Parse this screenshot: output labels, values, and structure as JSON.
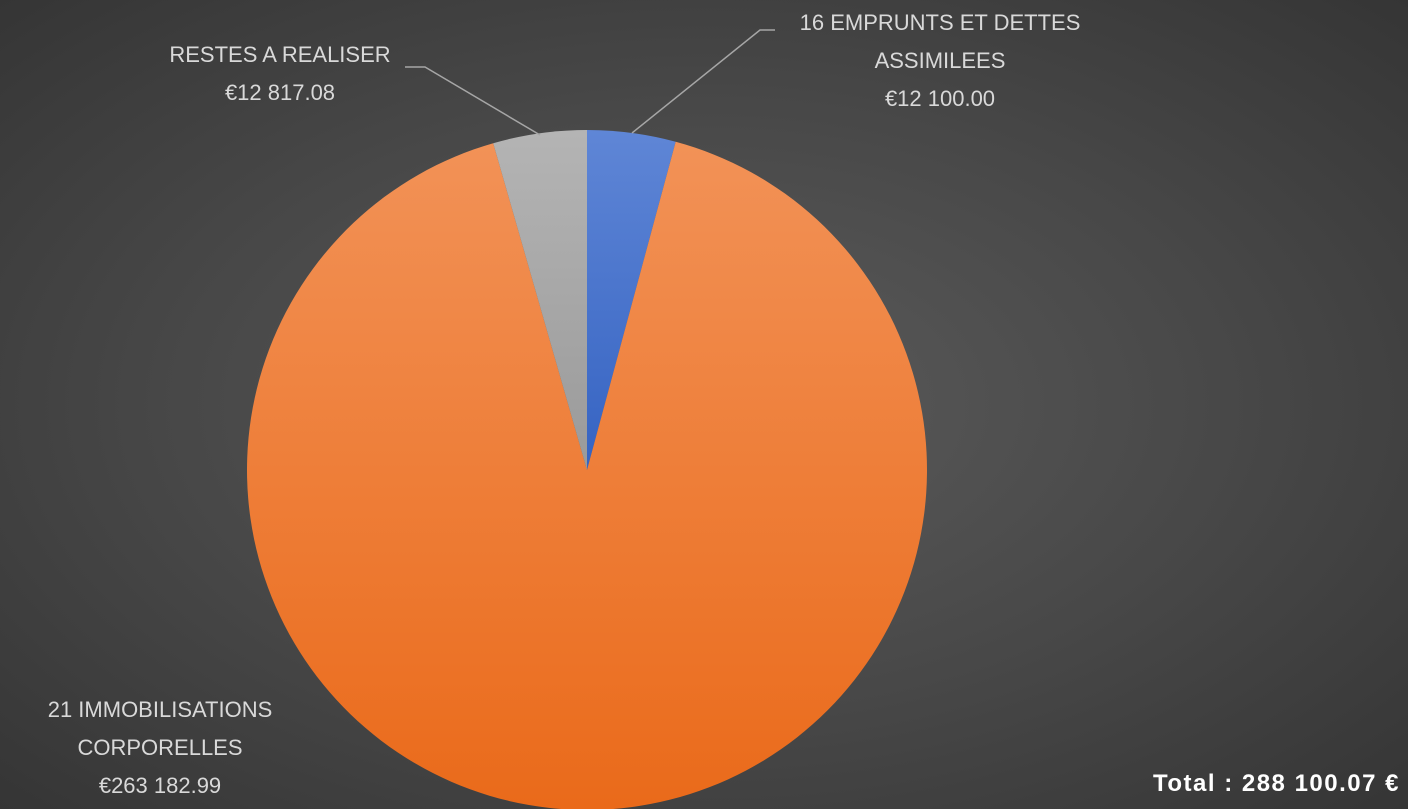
{
  "chart_data": {
    "type": "pie",
    "categories": [
      "16 EMPRUNTS ET DETTES ASSIMILEES",
      "21 IMMOBILISATIONS CORPORELLES",
      "RESTES A REALISER"
    ],
    "values": [
      12100.0,
      263182.99,
      12817.08
    ],
    "value_labels": [
      "€12 100.00",
      "€263 182.99",
      "€12 817.08"
    ],
    "colors": [
      "#4472c4",
      "#ed7d31",
      "#a5a5a5"
    ],
    "annotation": "Total : 288 100.07 €"
  }
}
